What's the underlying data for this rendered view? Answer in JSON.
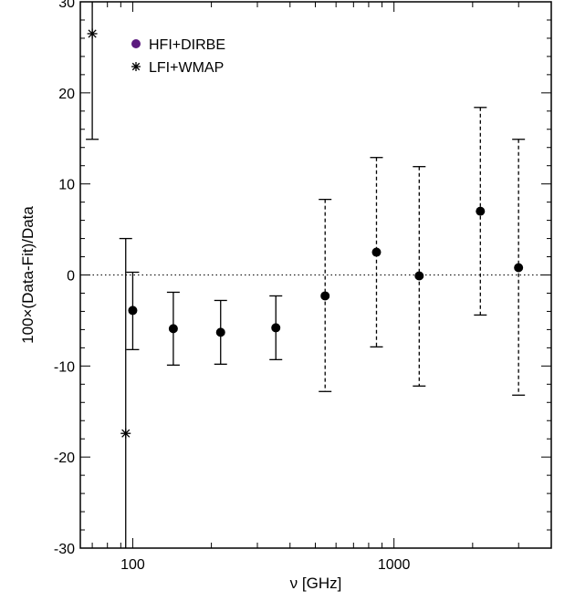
{
  "chart_data": {
    "type": "scatter",
    "title": "",
    "xlabel": "ν [GHz]",
    "ylabel": "100×(Data-Fit)/Data",
    "x_scale": "log",
    "xlim": [
      63,
      4000
    ],
    "ylim": [
      -30,
      30
    ],
    "x_tick_labels": [
      "100",
      "1000"
    ],
    "y_tick_labels": [
      "30",
      "20",
      "10",
      "0",
      "-10",
      "-20",
      "-30"
    ],
    "zero_line": "dotted",
    "legend_position": "top-left",
    "series": [
      {
        "name": "HFI+DIRBE",
        "marker": "filled-circle",
        "color": "#5b1a7e",
        "points": [
          {
            "x": 100,
            "y": -3.9,
            "err_low": -8.2,
            "err_high": 0.3,
            "dashed": false
          },
          {
            "x": 143,
            "y": -5.9,
            "err_low": -9.9,
            "err_high": -1.9,
            "dashed": false
          },
          {
            "x": 217,
            "y": -6.3,
            "err_low": -9.8,
            "err_high": -2.8,
            "dashed": false
          },
          {
            "x": 353,
            "y": -5.8,
            "err_low": -9.3,
            "err_high": -2.3,
            "dashed": false
          },
          {
            "x": 545,
            "y": -2.3,
            "err_low": -12.8,
            "err_high": 8.3,
            "dashed": true
          },
          {
            "x": 857,
            "y": 2.5,
            "err_low": -7.9,
            "err_high": 12.9,
            "dashed": true
          },
          {
            "x": 1249,
            "y": -0.1,
            "err_low": -12.2,
            "err_high": 11.9,
            "dashed": true
          },
          {
            "x": 2141,
            "y": 7.0,
            "err_low": -4.4,
            "err_high": 18.4,
            "dashed": true
          },
          {
            "x": 2998,
            "y": 0.8,
            "err_low": -13.2,
            "err_high": 14.9,
            "dashed": true
          }
        ]
      },
      {
        "name": "LFI+WMAP",
        "marker": "asterisk",
        "color": "#000000",
        "points": [
          {
            "x": 70,
            "y": 26.5,
            "err_low": 14.9,
            "err_high": 30,
            "dashed": false
          },
          {
            "x": 94,
            "y": -17.4,
            "err_low": -30,
            "err_high": 4.0,
            "dashed": false
          }
        ]
      }
    ]
  }
}
